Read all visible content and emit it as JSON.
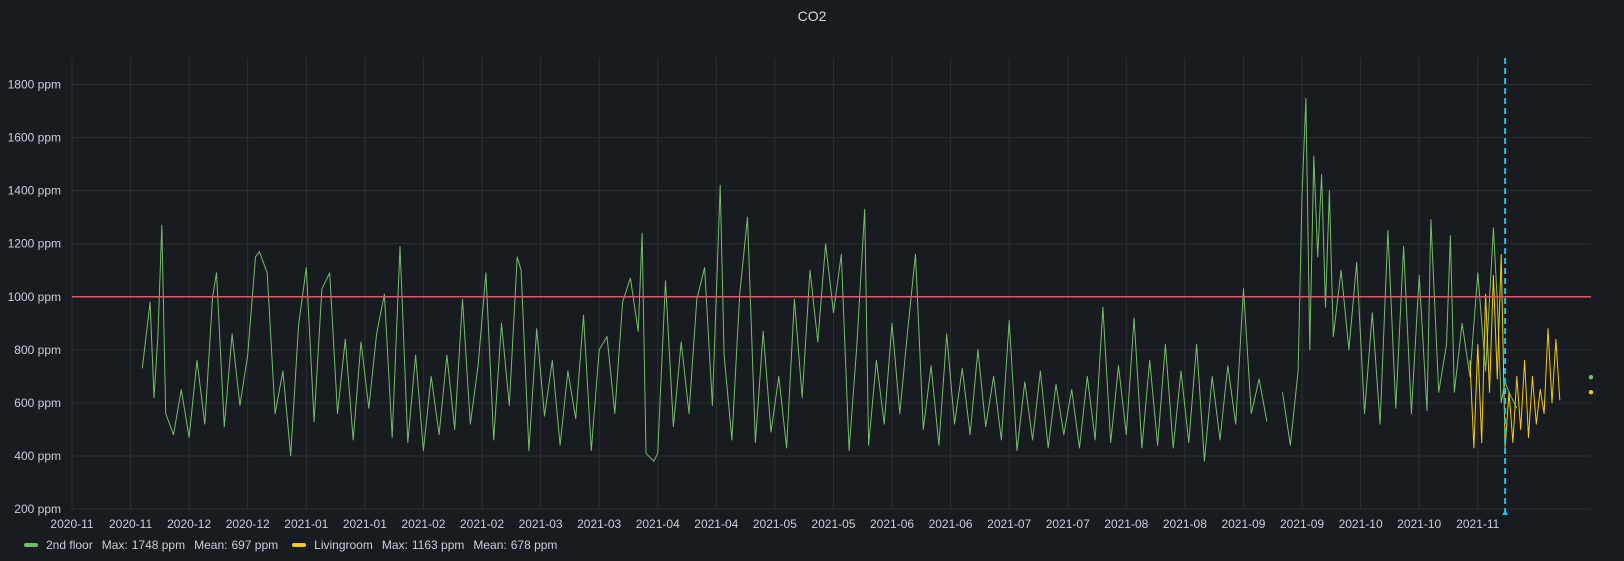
{
  "panel": {
    "title": "CO2"
  },
  "colors": {
    "background": "#181b1f",
    "grid": "#2c2f35",
    "threshold": "#e0566b",
    "cursor": "#14c5e6",
    "series_2nd_floor": "#73bf69",
    "series_livingroom": "#f2cc0c"
  },
  "legend": {
    "items": [
      {
        "name": "2nd floor",
        "max_label": "Max:",
        "max": "1748 ppm",
        "mean_label": "Mean:",
        "mean": "697 ppm",
        "color": "#73bf69"
      },
      {
        "name": "Livingroom",
        "max_label": "Max:",
        "max": "1163 ppm",
        "mean_label": "Mean:",
        "mean": "678 ppm",
        "color": "#f2cc0c"
      }
    ]
  },
  "chart_data": {
    "type": "line",
    "title": "CO2",
    "xlabel": "",
    "ylabel": "",
    "ylim": [
      200,
      1900
    ],
    "xlim": [
      "2020-10-20",
      "2021-11-13"
    ],
    "y_unit": "ppm",
    "y_ticks": [
      "200 ppm",
      "400 ppm",
      "600 ppm",
      "800 ppm",
      "1000 ppm",
      "1200 ppm",
      "1400 ppm",
      "1600 ppm",
      "1800 ppm"
    ],
    "y_tick_values": [
      200,
      400,
      600,
      800,
      1000,
      1200,
      1400,
      1600,
      1800
    ],
    "x_ticks": [
      {
        "date": "2020-10-20",
        "label": "2020-11"
      },
      {
        "date": "2020-11-04",
        "label": "2020-11"
      },
      {
        "date": "2020-11-19",
        "label": "2020-12"
      },
      {
        "date": "2020-12-04",
        "label": "2020-12"
      },
      {
        "date": "2020-12-19",
        "label": "2021-01"
      },
      {
        "date": "2021-01-03",
        "label": "2021-01"
      },
      {
        "date": "2021-01-18",
        "label": "2021-02"
      },
      {
        "date": "2021-02-02",
        "label": "2021-02"
      },
      {
        "date": "2021-02-17",
        "label": "2021-03"
      },
      {
        "date": "2021-03-04",
        "label": "2021-03"
      },
      {
        "date": "2021-03-19",
        "label": "2021-04"
      },
      {
        "date": "2021-04-03",
        "label": "2021-04"
      },
      {
        "date": "2021-04-18",
        "label": "2021-05"
      },
      {
        "date": "2021-05-03",
        "label": "2021-05"
      },
      {
        "date": "2021-05-18",
        "label": "2021-06"
      },
      {
        "date": "2021-06-02",
        "label": "2021-06"
      },
      {
        "date": "2021-06-17",
        "label": "2021-07"
      },
      {
        "date": "2021-07-02",
        "label": "2021-07"
      },
      {
        "date": "2021-07-17",
        "label": "2021-08"
      },
      {
        "date": "2021-08-01",
        "label": "2021-08"
      },
      {
        "date": "2021-08-16",
        "label": "2021-09"
      },
      {
        "date": "2021-08-31",
        "label": "2021-09"
      },
      {
        "date": "2021-09-15",
        "label": "2021-10"
      },
      {
        "date": "2021-09-30",
        "label": "2021-10"
      },
      {
        "date": "2021-10-15",
        "label": "2021-11"
      }
    ],
    "grid": true,
    "threshold": 1000,
    "cursor_date": "2021-10-22",
    "legend_position": "bottom-left",
    "series": [
      {
        "name": "2nd floor",
        "color": "#73bf69",
        "points": [
          [
            "2020-11-07",
            730
          ],
          [
            "2020-11-09",
            980
          ],
          [
            "2020-11-10",
            620
          ],
          [
            "2020-11-11",
            850
          ],
          [
            "2020-11-12",
            1270
          ],
          [
            "2020-11-13",
            560
          ],
          [
            "2020-11-15",
            480
          ],
          [
            "2020-11-17",
            650
          ],
          [
            "2020-11-19",
            470
          ],
          [
            "2020-11-21",
            760
          ],
          [
            "2020-11-23",
            520
          ],
          [
            "2020-11-25",
            1000
          ],
          [
            "2020-11-26",
            1090
          ],
          [
            "2020-11-28",
            510
          ],
          [
            "2020-11-30",
            860
          ],
          [
            "2020-12-02",
            590
          ],
          [
            "2020-12-04",
            780
          ],
          [
            "2020-12-06",
            1150
          ],
          [
            "2020-12-07",
            1170
          ],
          [
            "2020-12-09",
            1090
          ],
          [
            "2020-12-11",
            560
          ],
          [
            "2020-12-13",
            720
          ],
          [
            "2020-12-15",
            400
          ],
          [
            "2020-12-17",
            890
          ],
          [
            "2020-12-19",
            1110
          ],
          [
            "2020-12-21",
            530
          ],
          [
            "2020-12-23",
            1030
          ],
          [
            "2020-12-25",
            1090
          ],
          [
            "2020-12-27",
            560
          ],
          [
            "2020-12-29",
            840
          ],
          [
            "2020-12-31",
            460
          ],
          [
            "2021-01-02",
            830
          ],
          [
            "2021-01-04",
            580
          ],
          [
            "2021-01-06",
            860
          ],
          [
            "2021-01-08",
            1010
          ],
          [
            "2021-01-10",
            470
          ],
          [
            "2021-01-12",
            1190
          ],
          [
            "2021-01-14",
            450
          ],
          [
            "2021-01-16",
            780
          ],
          [
            "2021-01-18",
            420
          ],
          [
            "2021-01-20",
            700
          ],
          [
            "2021-01-22",
            480
          ],
          [
            "2021-01-24",
            780
          ],
          [
            "2021-01-26",
            500
          ],
          [
            "2021-01-28",
            990
          ],
          [
            "2021-01-30",
            520
          ],
          [
            "2021-02-01",
            740
          ],
          [
            "2021-02-03",
            1090
          ],
          [
            "2021-02-05",
            460
          ],
          [
            "2021-02-07",
            900
          ],
          [
            "2021-02-09",
            590
          ],
          [
            "2021-02-11",
            1150
          ],
          [
            "2021-02-12",
            1100
          ],
          [
            "2021-02-14",
            420
          ],
          [
            "2021-02-16",
            880
          ],
          [
            "2021-02-18",
            550
          ],
          [
            "2021-02-20",
            760
          ],
          [
            "2021-02-22",
            440
          ],
          [
            "2021-02-24",
            720
          ],
          [
            "2021-02-26",
            540
          ],
          [
            "2021-02-28",
            930
          ],
          [
            "2021-03-02",
            420
          ],
          [
            "2021-03-04",
            800
          ],
          [
            "2021-03-06",
            850
          ],
          [
            "2021-03-08",
            560
          ],
          [
            "2021-03-10",
            980
          ],
          [
            "2021-03-12",
            1070
          ],
          [
            "2021-03-14",
            870
          ],
          [
            "2021-03-15",
            1240
          ],
          [
            "2021-03-16",
            410
          ],
          [
            "2021-03-18",
            380
          ],
          [
            "2021-03-19",
            410
          ],
          [
            "2021-03-21",
            1060
          ],
          [
            "2021-03-23",
            510
          ],
          [
            "2021-03-25",
            830
          ],
          [
            "2021-03-27",
            560
          ],
          [
            "2021-03-29",
            990
          ],
          [
            "2021-03-31",
            1110
          ],
          [
            "2021-04-02",
            590
          ],
          [
            "2021-04-04",
            1420
          ],
          [
            "2021-04-05",
            780
          ],
          [
            "2021-04-07",
            460
          ],
          [
            "2021-04-09",
            1010
          ],
          [
            "2021-04-11",
            1300
          ],
          [
            "2021-04-13",
            450
          ],
          [
            "2021-04-15",
            870
          ],
          [
            "2021-04-17",
            490
          ],
          [
            "2021-04-19",
            700
          ],
          [
            "2021-04-21",
            430
          ],
          [
            "2021-04-23",
            990
          ],
          [
            "2021-04-25",
            620
          ],
          [
            "2021-04-27",
            1100
          ],
          [
            "2021-04-29",
            830
          ],
          [
            "2021-05-01",
            1200
          ],
          [
            "2021-05-03",
            940
          ],
          [
            "2021-05-05",
            1160
          ],
          [
            "2021-05-07",
            420
          ],
          [
            "2021-05-09",
            820
          ],
          [
            "2021-05-11",
            1330
          ],
          [
            "2021-05-12",
            440
          ],
          [
            "2021-05-14",
            760
          ],
          [
            "2021-05-16",
            520
          ],
          [
            "2021-05-18",
            900
          ],
          [
            "2021-05-20",
            560
          ],
          [
            "2021-05-22",
            870
          ],
          [
            "2021-05-24",
            1160
          ],
          [
            "2021-05-26",
            500
          ],
          [
            "2021-05-28",
            740
          ],
          [
            "2021-05-30",
            440
          ],
          [
            "2021-06-01",
            860
          ],
          [
            "2021-06-03",
            520
          ],
          [
            "2021-06-05",
            730
          ],
          [
            "2021-06-07",
            480
          ],
          [
            "2021-06-09",
            800
          ],
          [
            "2021-06-11",
            510
          ],
          [
            "2021-06-13",
            700
          ],
          [
            "2021-06-15",
            460
          ],
          [
            "2021-06-17",
            910
          ],
          [
            "2021-06-19",
            420
          ],
          [
            "2021-06-21",
            680
          ],
          [
            "2021-06-23",
            460
          ],
          [
            "2021-06-25",
            720
          ],
          [
            "2021-06-27",
            430
          ],
          [
            "2021-06-29",
            670
          ],
          [
            "2021-07-01",
            480
          ],
          [
            "2021-07-03",
            650
          ],
          [
            "2021-07-05",
            430
          ],
          [
            "2021-07-07",
            700
          ],
          [
            "2021-07-09",
            460
          ],
          [
            "2021-07-11",
            960
          ],
          [
            "2021-07-13",
            450
          ],
          [
            "2021-07-15",
            740
          ],
          [
            "2021-07-17",
            480
          ],
          [
            "2021-07-19",
            920
          ],
          [
            "2021-07-21",
            430
          ],
          [
            "2021-07-23",
            760
          ],
          [
            "2021-07-25",
            440
          ],
          [
            "2021-07-27",
            820
          ],
          [
            "2021-07-29",
            430
          ],
          [
            "2021-07-31",
            720
          ],
          [
            "2021-08-02",
            450
          ],
          [
            "2021-08-04",
            820
          ],
          [
            "2021-08-06",
            380
          ],
          [
            "2021-08-08",
            700
          ],
          [
            "2021-08-10",
            460
          ],
          [
            "2021-08-12",
            740
          ],
          [
            "2021-08-14",
            520
          ],
          [
            "2021-08-16",
            1030
          ],
          [
            "2021-08-18",
            560
          ],
          [
            "2021-08-20",
            690
          ],
          [
            "2021-08-22",
            530
          ],
          null,
          [
            "2021-08-26",
            640
          ],
          [
            "2021-08-28",
            440
          ],
          [
            "2021-08-30",
            720
          ],
          [
            "2021-08-31",
            1380
          ],
          [
            "2021-09-01",
            1748
          ],
          [
            "2021-09-02",
            800
          ],
          [
            "2021-09-03",
            1530
          ],
          [
            "2021-09-04",
            1150
          ],
          [
            "2021-09-05",
            1460
          ],
          [
            "2021-09-06",
            960
          ],
          [
            "2021-09-07",
            1400
          ],
          [
            "2021-09-08",
            850
          ],
          [
            "2021-09-10",
            1100
          ],
          [
            "2021-09-12",
            800
          ],
          [
            "2021-09-14",
            1130
          ],
          [
            "2021-09-16",
            560
          ],
          [
            "2021-09-18",
            940
          ],
          [
            "2021-09-20",
            520
          ],
          [
            "2021-09-22",
            1250
          ],
          [
            "2021-09-24",
            580
          ],
          [
            "2021-09-26",
            1190
          ],
          [
            "2021-09-28",
            560
          ],
          [
            "2021-09-30",
            1080
          ],
          [
            "2021-10-02",
            570
          ],
          [
            "2021-10-03",
            1290
          ],
          [
            "2021-10-05",
            640
          ],
          [
            "2021-10-07",
            820
          ],
          [
            "2021-10-08",
            1230
          ],
          [
            "2021-10-09",
            640
          ],
          [
            "2021-10-11",
            900
          ],
          [
            "2021-10-13",
            700
          ],
          [
            "2021-10-15",
            1090
          ],
          [
            "2021-10-17",
            720
          ],
          [
            "2021-10-19",
            1260
          ],
          [
            "2021-10-20",
            980
          ],
          [
            "2021-10-21",
            600
          ],
          [
            "2021-10-22",
            680
          ],
          [
            "2021-10-23",
            640
          ],
          [
            "2021-10-25",
            580
          ]
        ]
      },
      {
        "name": "Livingroom",
        "color": "#f2cc0c",
        "points": [
          [
            "2021-10-13",
            760
          ],
          [
            "2021-10-14",
            430
          ],
          [
            "2021-10-15",
            820
          ],
          [
            "2021-10-16",
            450
          ],
          [
            "2021-10-17",
            1010
          ],
          [
            "2021-10-18",
            640
          ],
          [
            "2021-10-19",
            1080
          ],
          [
            "2021-10-20",
            690
          ],
          [
            "2021-10-21",
            1160
          ],
          [
            "2021-10-22",
            430
          ],
          [
            "2021-10-23",
            640
          ],
          [
            "2021-10-24",
            450
          ],
          [
            "2021-10-25",
            700
          ],
          [
            "2021-10-26",
            500
          ],
          [
            "2021-10-27",
            760
          ],
          [
            "2021-10-28",
            470
          ],
          [
            "2021-10-29",
            700
          ],
          [
            "2021-10-30",
            520
          ],
          [
            "2021-10-31",
            650
          ],
          [
            "2021-11-01",
            560
          ],
          [
            "2021-11-02",
            880
          ],
          [
            "2021-11-03",
            600
          ],
          [
            "2021-11-04",
            840
          ],
          [
            "2021-11-05",
            610
          ]
        ]
      }
    ]
  }
}
